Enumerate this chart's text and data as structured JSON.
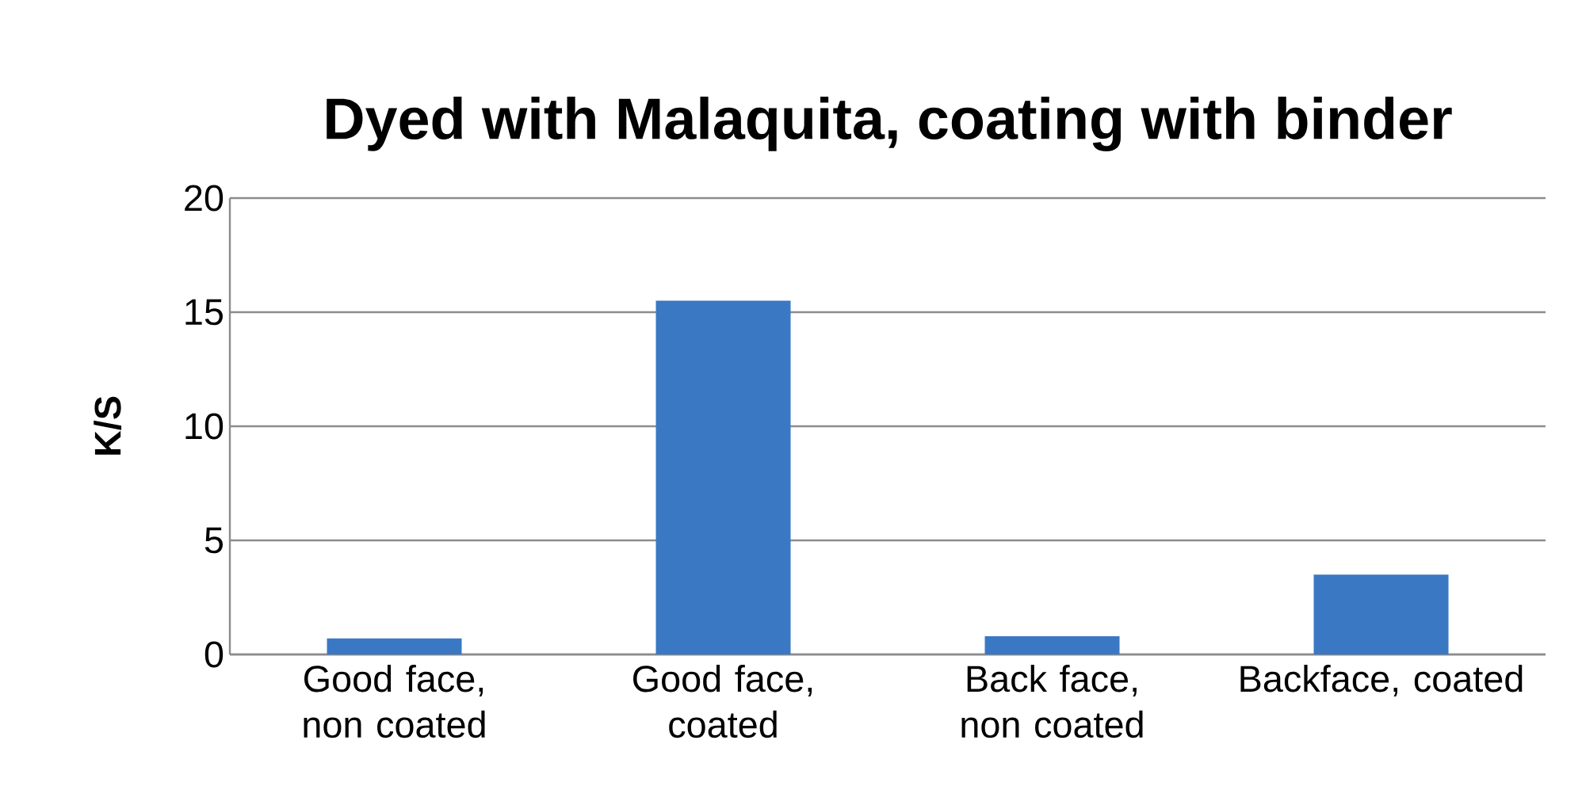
{
  "chart_data": {
    "type": "bar",
    "title": "Dyed with Malaquita, coating with binder",
    "ylabel": "K/S",
    "categories": [
      "Good face, non coated",
      "Good face, coated",
      "Back face, non coated",
      "Backface, coated"
    ],
    "values": [
      0.7,
      15.5,
      0.8,
      3.5
    ],
    "color": "#3a78c4",
    "ylim": [
      0,
      20
    ],
    "yticks": [
      0,
      5,
      10,
      15,
      20
    ],
    "grid": "y"
  }
}
